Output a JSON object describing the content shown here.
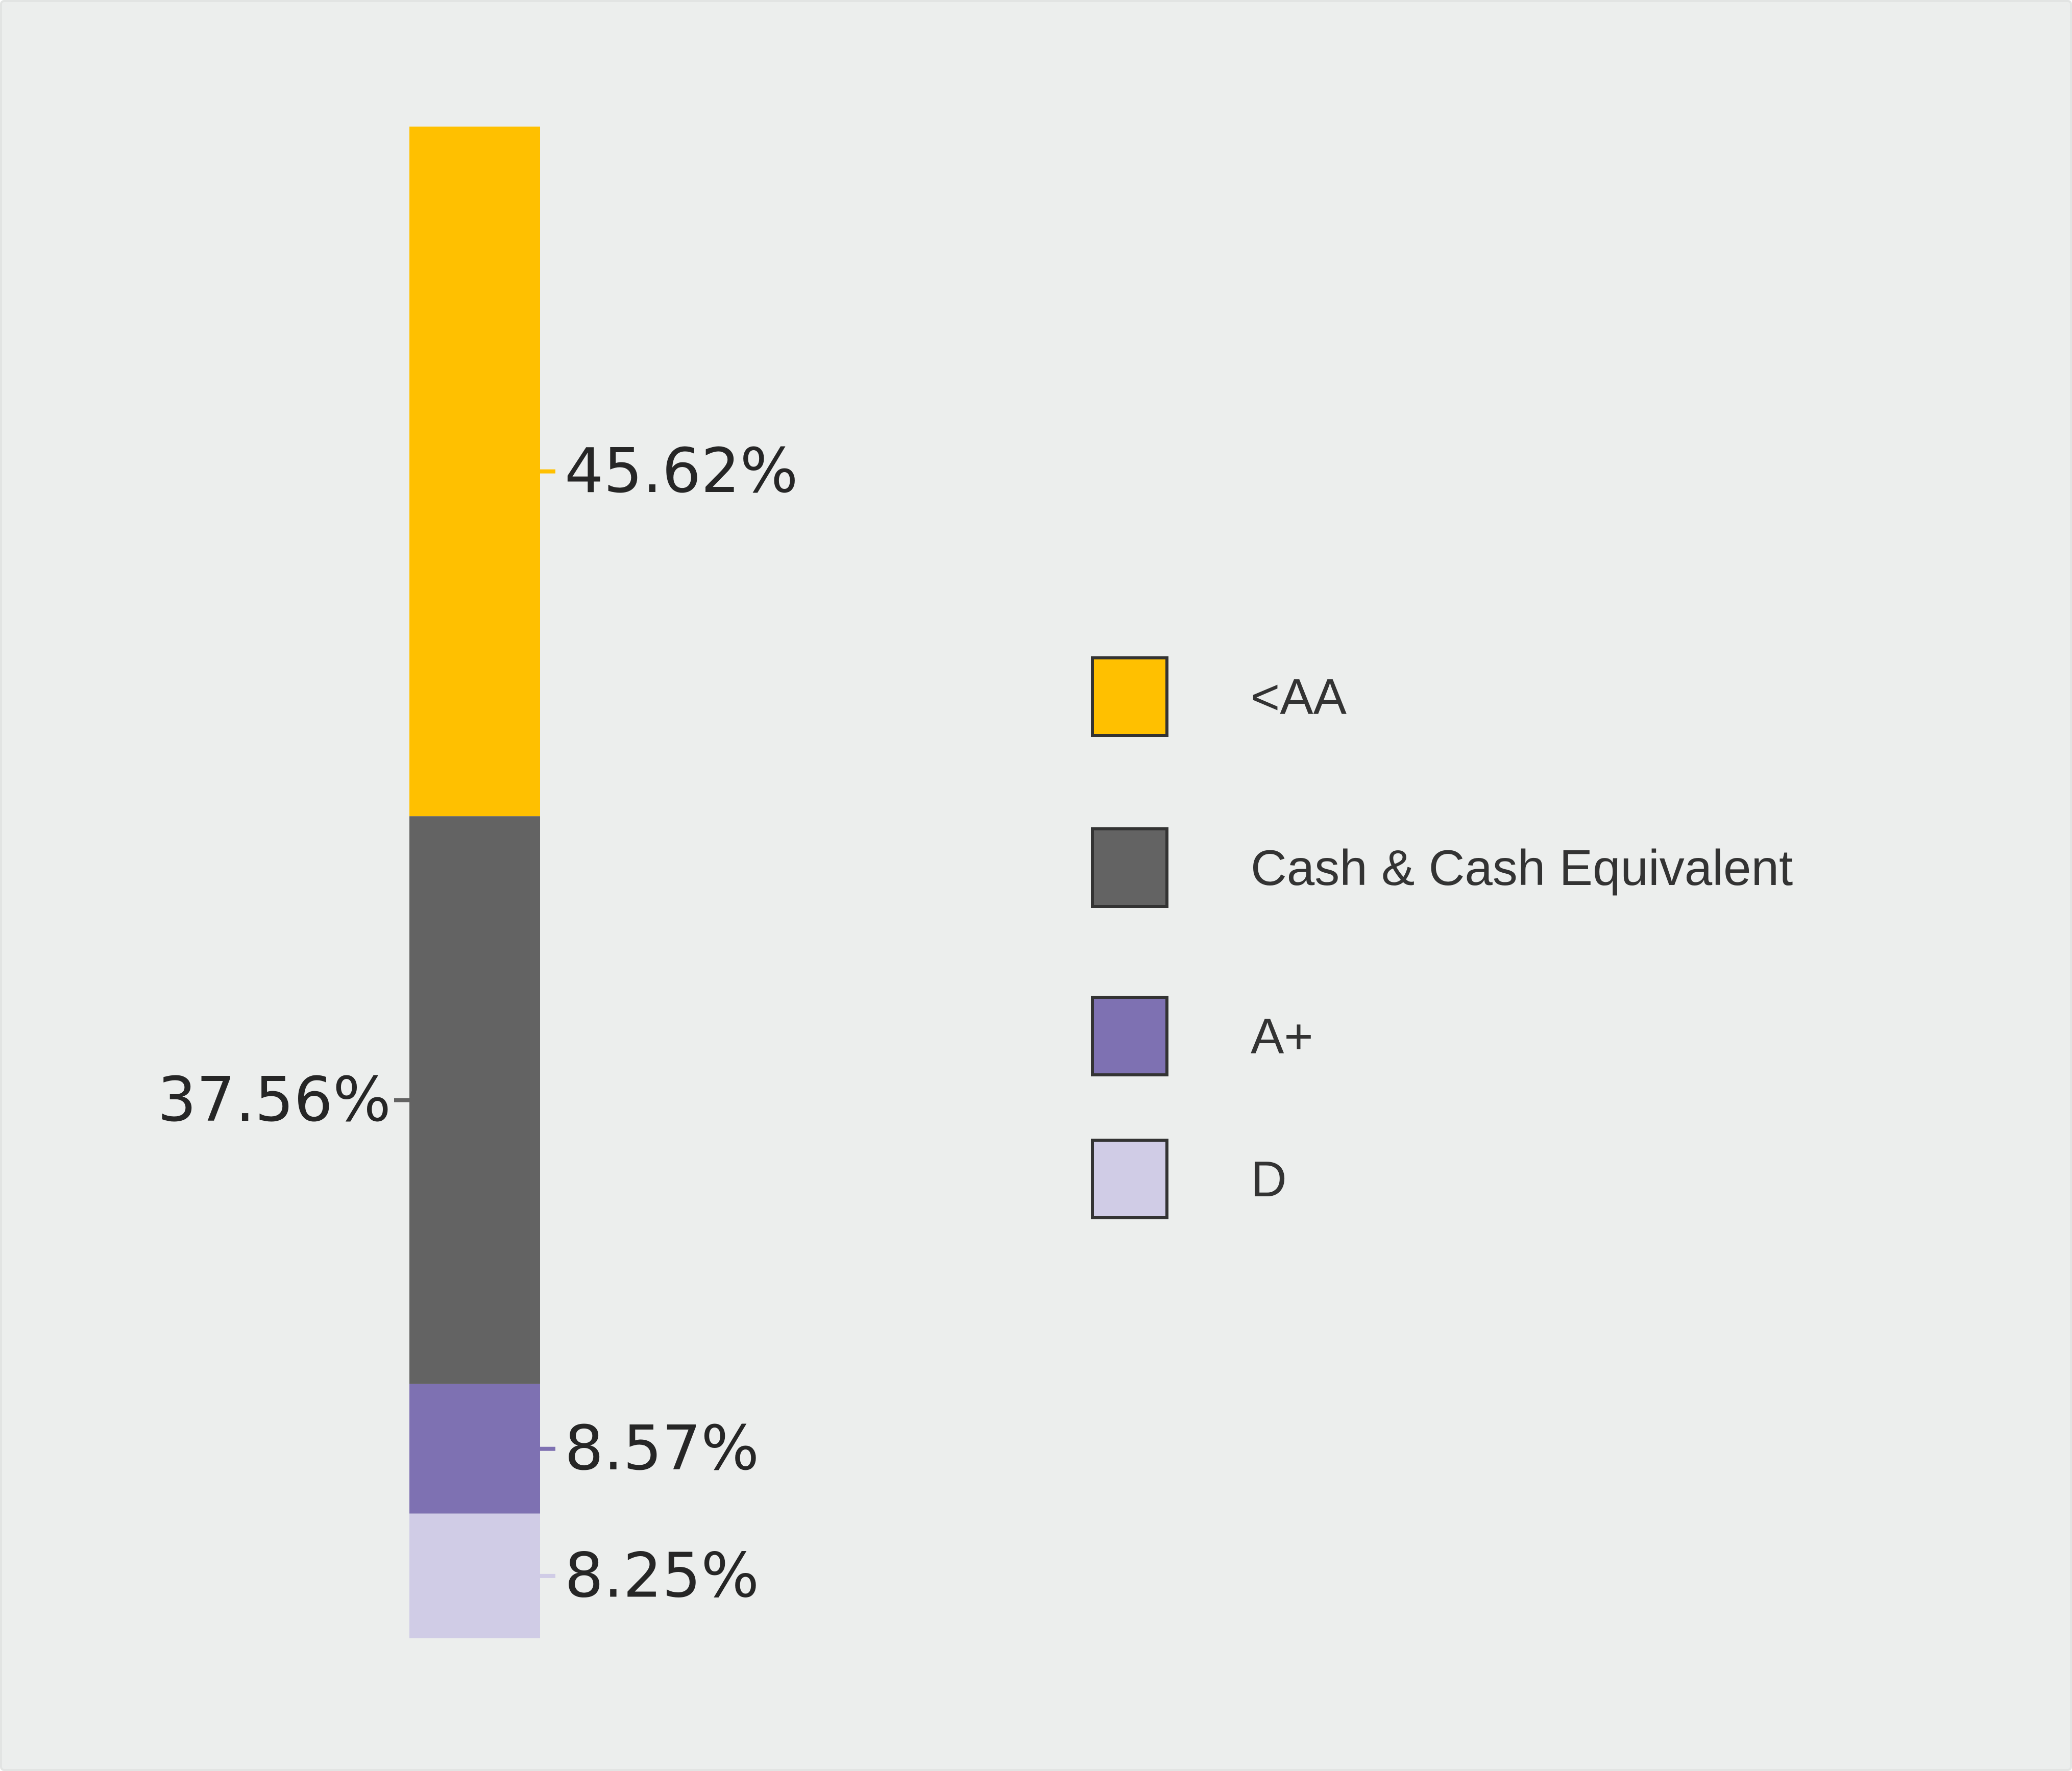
{
  "chart_data": {
    "type": "bar",
    "stacked": true,
    "orientation": "vertical",
    "title": "",
    "xlabel": "",
    "ylabel": "",
    "ylim": [
      0,
      100
    ],
    "grid": false,
    "legend_position": "right",
    "background_color": "#eceeed",
    "series": [
      {
        "name": "<AA",
        "value": 45.62,
        "label": "45.62%",
        "color": "#ffc000",
        "label_side": "right"
      },
      {
        "name": "Cash & Cash Equivalent",
        "value": 37.56,
        "label": "37.56%",
        "color": "#636363",
        "label_side": "left"
      },
      {
        "name": "A+",
        "value": 8.57,
        "label": "8.57%",
        "color": "#7e71b2",
        "label_side": "right"
      },
      {
        "name": "D",
        "value": 8.25,
        "label": "8.25%",
        "color": "#d0cce6",
        "label_side": "right"
      }
    ]
  }
}
